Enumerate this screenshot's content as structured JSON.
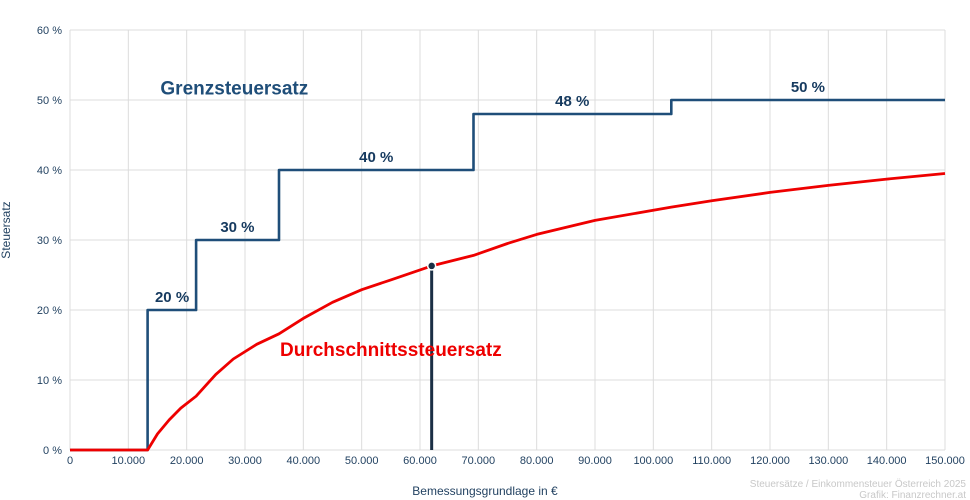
{
  "chart_data": {
    "type": "line",
    "xlabel": "Bemessungsgrundlage in €",
    "ylabel": "Steuersatz",
    "xlim": [
      0,
      150000
    ],
    "ylim": [
      0,
      60
    ],
    "grid": true,
    "x_ticks": [
      "0",
      "10.000",
      "20.000",
      "30.000",
      "40.000",
      "50.000",
      "60.000",
      "70.000",
      "80.000",
      "90.000",
      "100.000",
      "110.000",
      "120.000",
      "130.000",
      "140.000",
      "150.000"
    ],
    "y_ticks": [
      "0 %",
      "10 %",
      "20 %",
      "30 %",
      "40 %",
      "50 %",
      "60 %"
    ],
    "series": [
      {
        "name": "Grenzsteuersatz",
        "color": "#1f4e79",
        "style": "step",
        "points": [
          [
            0,
            0
          ],
          [
            13308,
            0
          ],
          [
            13308,
            20
          ],
          [
            21617,
            20
          ],
          [
            21617,
            30
          ],
          [
            35836,
            30
          ],
          [
            35836,
            40
          ],
          [
            69166,
            40
          ],
          [
            69166,
            48
          ],
          [
            103072,
            48
          ],
          [
            103072,
            50
          ],
          [
            150000,
            50
          ]
        ]
      },
      {
        "name": "Durchschnittssteuersatz",
        "color": "#ee0000",
        "style": "line",
        "points": [
          [
            0,
            0
          ],
          [
            13308,
            0
          ],
          [
            15000,
            2.3
          ],
          [
            17000,
            4.3
          ],
          [
            19000,
            5.99
          ],
          [
            21617,
            7.69
          ],
          [
            25000,
            10.8
          ],
          [
            28000,
            13.0
          ],
          [
            32000,
            15.1
          ],
          [
            35836,
            16.6
          ],
          [
            40000,
            18.8
          ],
          [
            45000,
            21.1
          ],
          [
            50000,
            22.9
          ],
          [
            55000,
            24.3
          ],
          [
            62000,
            26.3
          ],
          [
            69166,
            27.8
          ],
          [
            75000,
            29.5
          ],
          [
            80000,
            30.8
          ],
          [
            90000,
            32.8
          ],
          [
            103072,
            34.7
          ],
          [
            110000,
            35.6
          ],
          [
            120000,
            36.8
          ],
          [
            130000,
            37.8
          ],
          [
            140000,
            38.7
          ],
          [
            150000,
            39.5
          ]
        ]
      }
    ],
    "step_labels": [
      {
        "x": 17500,
        "y": 20,
        "text": "20 %"
      },
      {
        "x": 28700,
        "y": 30,
        "text": "30 %"
      },
      {
        "x": 52500,
        "y": 40,
        "text": "40 %"
      },
      {
        "x": 86100,
        "y": 48,
        "text": "48 %"
      },
      {
        "x": 126500,
        "y": 50,
        "text": "50 %"
      }
    ],
    "series_labels": [
      {
        "text": "Grenzsteuersatz",
        "x": 15500,
        "y": 50.8,
        "color": "#1f4e79"
      },
      {
        "text": "Durchschnittssteuersatz",
        "x": 36000,
        "y": 13.4,
        "color": "#ee0000"
      }
    ],
    "marker": {
      "x": 62000,
      "y": 26.3,
      "color": "#1b2f45"
    }
  },
  "credits": {
    "line1": "Steuersätze / Einkommensteuer Österreich 2025",
    "line2": "Grafik: Finanzrechner.at"
  }
}
